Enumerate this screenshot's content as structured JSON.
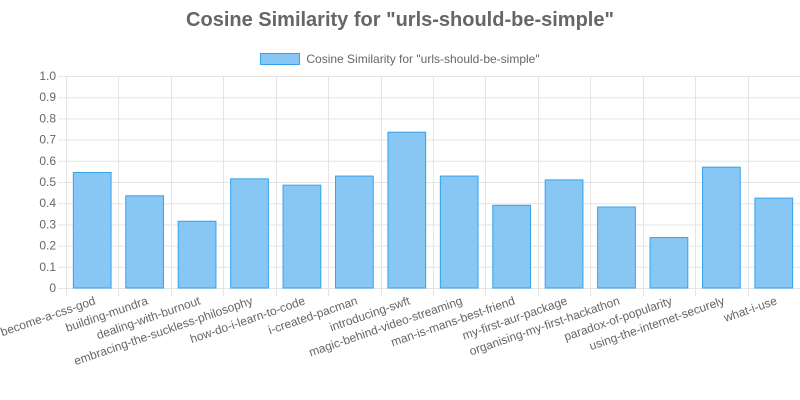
{
  "chart_data": {
    "type": "bar",
    "title": "Cosine Similarity for \"urls-should-be-simple\"",
    "xlabel": "",
    "ylabel": "",
    "ylim": [
      0,
      1.0
    ],
    "yticks": [
      "0",
      "0.1",
      "0.2",
      "0.3",
      "0.4",
      "0.5",
      "0.6",
      "0.7",
      "0.8",
      "0.9",
      "1.0"
    ],
    "legend_position": "top",
    "grid": true,
    "categories": [
      "become-a-css-god",
      "building-mundra",
      "dealing-with-burnout",
      "embracing-the-suckless-philosophy",
      "how-do-i-learn-to-code",
      "i-created-pacman",
      "introducing-swft",
      "magic-behind-video-streaming",
      "man-is-mans-best-friend",
      "my-first-aur-package",
      "organising-my-first-hackathon",
      "paradox-of-popularity",
      "using-the-internet-securely",
      "what-i-use"
    ],
    "series": [
      {
        "name": "Cosine Similarity for \"urls-should-be-simple\"",
        "values": [
          0.545,
          0.435,
          0.315,
          0.515,
          0.485,
          0.528,
          0.735,
          0.528,
          0.39,
          0.51,
          0.382,
          0.238,
          0.57,
          0.424
        ],
        "fill_color": "#88c7f4",
        "border_color": "#36a2eb"
      }
    ]
  },
  "colors": {
    "grid": "#e5e5e5",
    "axis": "#cccccc",
    "text": "#666666"
  }
}
